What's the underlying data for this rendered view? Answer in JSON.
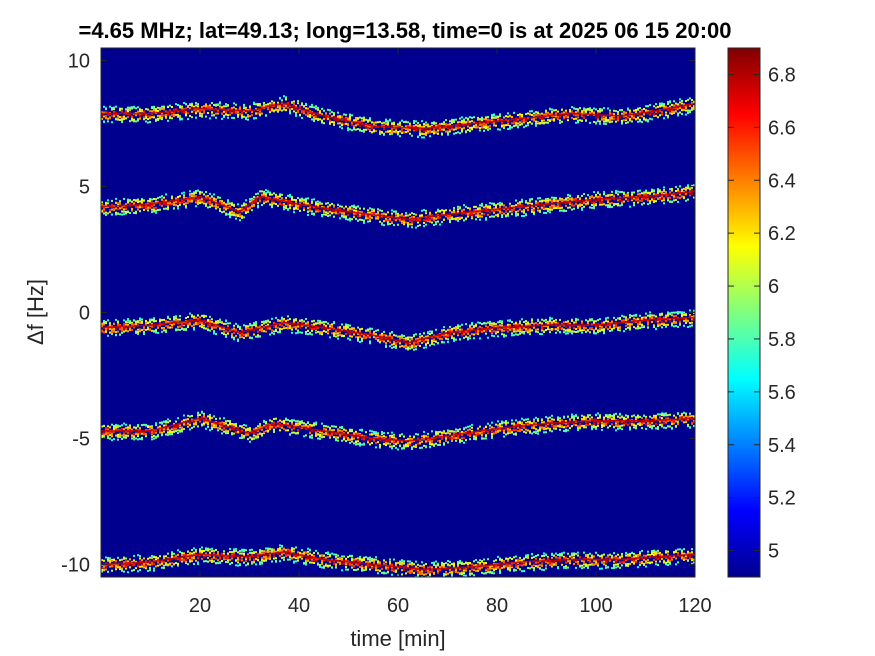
{
  "chart_data": {
    "type": "heatmap",
    "title": "=4.65 MHz;  lat=49.13; long=13.58, time=0 is at 2025 06 15 20:00",
    "xlabel": "time [min]",
    "ylabel": "Δf [Hz]",
    "xlim": [
      0,
      120
    ],
    "ylim": [
      -10.5,
      10.5
    ],
    "xticks": [
      20,
      40,
      60,
      80,
      100,
      120
    ],
    "yticks": [
      10,
      5,
      0,
      -5,
      -10
    ],
    "colorbar": {
      "colormap": "jet",
      "range": [
        4.9,
        6.9
      ],
      "ticks": [
        6.8,
        6.6,
        6.4,
        6.2,
        6,
        5.8,
        5.6,
        5.4,
        5.2,
        5
      ]
    },
    "series": [
      {
        "center_offset": 8,
        "x": [
          0,
          10,
          20,
          30,
          37,
          45,
          55,
          65,
          75,
          85,
          95,
          105,
          112,
          120
        ],
        "y": [
          7.9,
          7.9,
          8.1,
          8.0,
          8.3,
          7.8,
          7.4,
          7.3,
          7.5,
          7.7,
          7.9,
          7.8,
          8.0,
          8.3
        ]
      },
      {
        "center_offset": 4,
        "x": [
          0,
          10,
          20,
          28,
          32,
          40,
          50,
          62,
          70,
          80,
          90,
          100,
          110,
          120
        ],
        "y": [
          4.2,
          4.3,
          4.6,
          4.0,
          4.6,
          4.3,
          4.0,
          3.7,
          3.9,
          4.1,
          4.3,
          4.5,
          4.6,
          4.8
        ]
      },
      {
        "center_offset": 0,
        "x": [
          0,
          10,
          20,
          28,
          37,
          45,
          55,
          62,
          70,
          80,
          90,
          100,
          110,
          120
        ],
        "y": [
          -0.6,
          -0.5,
          -0.3,
          -0.8,
          -0.4,
          -0.6,
          -0.9,
          -1.2,
          -0.8,
          -0.6,
          -0.5,
          -0.5,
          -0.3,
          -0.2
        ]
      },
      {
        "center_offset": -4,
        "x": [
          0,
          10,
          20,
          30,
          35,
          45,
          55,
          62,
          70,
          80,
          90,
          100,
          110,
          120
        ],
        "y": [
          -4.7,
          -4.7,
          -4.2,
          -4.8,
          -4.4,
          -4.7,
          -5.0,
          -5.1,
          -4.9,
          -4.6,
          -4.4,
          -4.3,
          -4.3,
          -4.2
        ]
      },
      {
        "center_offset": -8,
        "x": [
          0,
          10,
          20,
          30,
          37,
          45,
          55,
          65,
          75,
          85,
          95,
          105,
          112,
          120
        ],
        "y": [
          -10.0,
          -9.9,
          -9.6,
          -9.7,
          -9.5,
          -9.8,
          -10.0,
          -10.2,
          -10.1,
          -9.9,
          -9.8,
          -9.8,
          -9.7,
          -9.6
        ]
      }
    ]
  }
}
